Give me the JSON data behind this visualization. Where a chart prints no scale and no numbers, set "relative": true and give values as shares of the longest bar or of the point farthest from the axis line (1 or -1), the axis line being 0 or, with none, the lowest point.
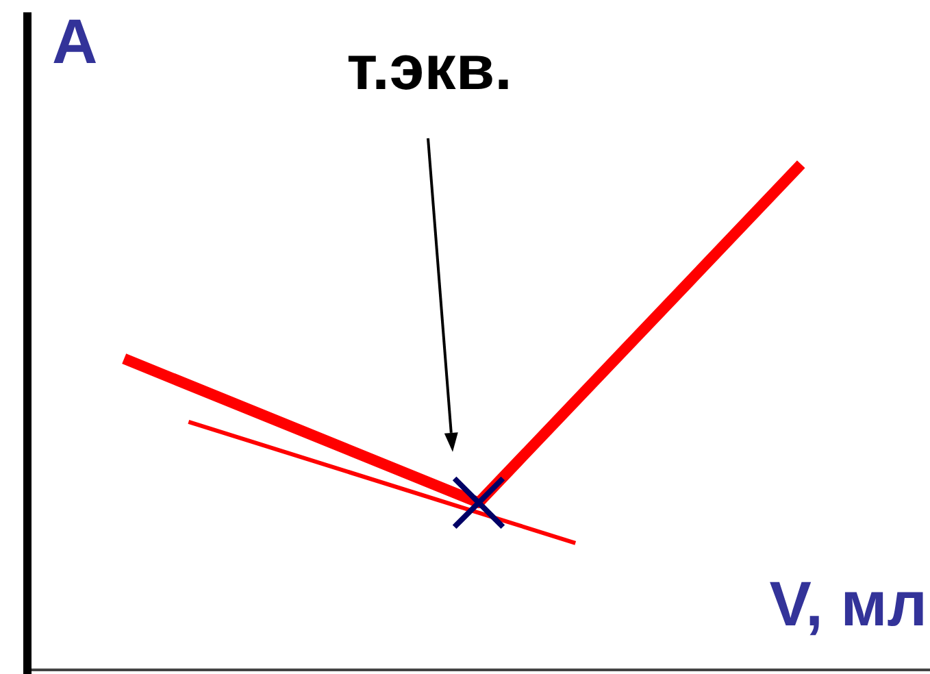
{
  "chart_data": {
    "type": "line",
    "relative": true,
    "xlabel": "V, мл",
    "ylabel": "A",
    "annotations": [
      "т.экв."
    ],
    "categories": [
      null,
      null,
      null,
      null,
      null,
      null,
      null,
      null,
      null,
      null,
      null,
      null,
      null,
      null,
      null,
      null,
      null,
      null,
      null,
      null,
      null,
      null,
      null,
      null,
      null,
      null,
      null,
      null,
      null
    ],
    "series": [
      {
        "color": "#ff0000",
        "values": [
          null,
          null,
          null,
          0.615,
          null,
          null,
          null,
          null,
          null,
          null,
          null,
          null,
          null,
          null,
          0.33,
          null,
          null,
          null,
          null,
          null,
          null,
          null,
          null,
          null,
          1,
          null,
          null,
          null,
          null
        ]
      },
      {
        "color": "#ff0000",
        "values": [
          null,
          null,
          null,
          null,
          null,
          0.49,
          null,
          null,
          null,
          null,
          null,
          null,
          null,
          null,
          null,
          null,
          null,
          0.25,
          null,
          null,
          null,
          null,
          null,
          null,
          null,
          null,
          null,
          null,
          null
        ]
      },
      {
        "color": "#000066",
        "marker": "cross",
        "values": [
          null,
          null,
          null,
          null,
          null,
          null,
          null,
          null,
          null,
          null,
          null,
          null,
          null,
          null,
          0.33,
          null,
          null,
          null,
          null,
          null,
          null,
          null,
          null,
          null,
          null,
          null,
          null,
          null,
          null
        ]
      }
    ]
  }
}
